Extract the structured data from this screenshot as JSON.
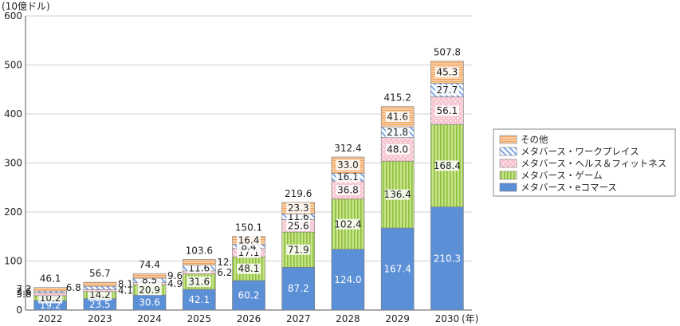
{
  "chart_data": {
    "type": "bar",
    "stacked": true,
    "ylabel": "(10億ドル)",
    "xunit": "(年)",
    "ylim": [
      0,
      600
    ],
    "yticks": [
      0,
      100,
      200,
      300,
      400,
      500,
      600
    ],
    "categories": [
      "2022",
      "2023",
      "2024",
      "2025",
      "2026",
      "2027",
      "2028",
      "2029",
      "2030"
    ],
    "totals": [
      "46.1",
      "56.7",
      "74.4",
      "103.6",
      "150.1",
      "219.6",
      "312.4",
      "415.2",
      "507.8"
    ],
    "series": [
      {
        "name": "メタバース・eコマース",
        "color": "#5b8fd6",
        "pattern": "solid",
        "values": [
          19.2,
          23.5,
          30.6,
          42.1,
          60.2,
          87.2,
          124.0,
          167.4,
          210.3
        ]
      },
      {
        "name": "メタバース・ゲーム",
        "color": "#b5d96a",
        "pattern": "vlines",
        "values": [
          10.2,
          14.2,
          20.9,
          31.6,
          48.1,
          71.9,
          102.4,
          136.4,
          168.4
        ]
      },
      {
        "name": "メタバース・ヘルス＆フィットネス",
        "color": "#f5b8c6",
        "pattern": "dots",
        "values": [
          5.8,
          4.1,
          4.9,
          6.2,
          17.1,
          25.6,
          36.8,
          48.0,
          56.1
        ]
      },
      {
        "name": "メタバース・ワークプレイス",
        "color": "#a9c4ee",
        "pattern": "diag",
        "values": [
          3.6,
          6.8,
          8.5,
          11.6,
          8.4,
          11.6,
          16.1,
          21.8,
          27.7
        ]
      },
      {
        "name": "その他",
        "color": "#f8c89a",
        "pattern": "hlines",
        "values": [
          7.2,
          8.1,
          9.6,
          12.1,
          16.4,
          23.3,
          33.0,
          41.6,
          45.3
        ]
      }
    ],
    "legend_position": "right",
    "grid": "horizontal"
  }
}
